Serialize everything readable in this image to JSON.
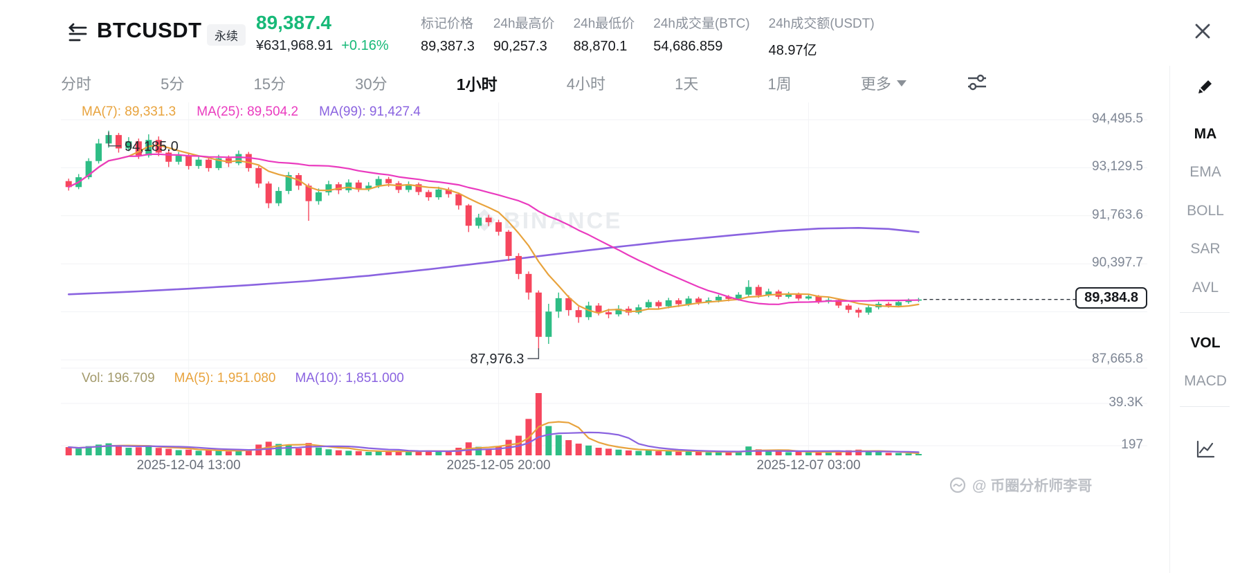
{
  "header": {
    "symbol": "BTCUSDT",
    "contract_badge": "永续",
    "last_price": "89,387.4",
    "fiat_price": "¥631,968.91",
    "change_percent": "+0.16%",
    "stats": [
      {
        "label": "标记价格",
        "value": "89,387.3"
      },
      {
        "label": "24h最高价",
        "value": "90,257.3"
      },
      {
        "label": "24h最低价",
        "value": "88,870.1"
      },
      {
        "label": "24h成交量(BTC)",
        "value": "54,686.859"
      },
      {
        "label": "24h成交额(USDT)",
        "value": "48.97亿"
      }
    ]
  },
  "timeframes": {
    "items": [
      "分时",
      "5分",
      "15分",
      "30分",
      "1小时",
      "4小时",
      "1天",
      "1周"
    ],
    "active": "1小时",
    "more_label": "更多"
  },
  "legend": {
    "ma7_label": "MA(7): 89,331.3",
    "ma25_label": "MA(25): 89,504.2",
    "ma99_label": "MA(99): 91,427.4"
  },
  "volume_legend": {
    "vol_label": "Vol: 196.709",
    "ma5_label": "MA(5): 1,951.080",
    "ma10_label": "MA(10): 1,851.000"
  },
  "annotations": {
    "high": "94,185.0",
    "low": "87,976.3"
  },
  "current_price_tag": "89,384.8",
  "price_axis": {
    "labels": [
      "94,495.5",
      "93,129.5",
      "91,763.6",
      "90,397.7",
      "87,665.8"
    ],
    "values": [
      94495.5,
      93129.5,
      91763.6,
      90397.7,
      87665.8
    ]
  },
  "volume_axis": {
    "labels": [
      "39.3K",
      "197"
    ]
  },
  "x_axis_labels": [
    {
      "text": "2025-12-04 13:00",
      "index": 12
    },
    {
      "text": "2025-12-05 20:00",
      "index": 43
    },
    {
      "text": "2025-12-07 03:00",
      "index": 74
    }
  ],
  "indicators_sidebar": {
    "main": [
      "MA",
      "EMA",
      "BOLL",
      "SAR",
      "AVL"
    ],
    "sub": [
      "VOL",
      "MACD"
    ],
    "active_main": "MA",
    "active_sub": "VOL"
  },
  "watermark": "BINANCE",
  "credit": "@ 币圈分析师李哥",
  "colors": {
    "up": "#2ebd85",
    "down": "#f6465d",
    "ma7": "#e8a33d",
    "ma25": "#ea3bbf",
    "ma99": "#8a63e0",
    "price_green": "#17b978",
    "vol_label": "#a39a6b",
    "grid": "#f1f2f4",
    "watermark_gray": "#e9ecef"
  },
  "chart_data": {
    "type": "candlestick",
    "interval": "1小时",
    "y_gridline_values": [
      94495.5,
      93129.5,
      91763.6,
      90397.7,
      89031.8,
      87665.8
    ],
    "candles": [
      [
        92750,
        92820,
        92480,
        92580,
        5200
      ],
      [
        92580,
        92950,
        92520,
        92860,
        4300
      ],
      [
        92860,
        93400,
        92800,
        93320,
        5800
      ],
      [
        93320,
        93950,
        93250,
        93820,
        6800
      ],
      [
        93820,
        94185,
        93700,
        94060,
        7600
      ],
      [
        94060,
        94120,
        93560,
        93680,
        6200
      ],
      [
        93680,
        94000,
        93600,
        93880,
        4800
      ],
      [
        93880,
        93960,
        93380,
        93480,
        5100
      ],
      [
        93480,
        94080,
        93420,
        93920,
        6400
      ],
      [
        93920,
        94020,
        93460,
        93560,
        4700
      ],
      [
        93560,
        93640,
        93150,
        93300,
        4100
      ],
      [
        93300,
        93580,
        93220,
        93470,
        3300
      ],
      [
        93470,
        93540,
        93080,
        93180,
        3600
      ],
      [
        93180,
        93460,
        93100,
        93360,
        2900
      ],
      [
        93360,
        93420,
        93020,
        93120,
        3100
      ],
      [
        93120,
        93500,
        93060,
        93400,
        2800
      ],
      [
        93400,
        93480,
        93150,
        93260,
        2500
      ],
      [
        93260,
        93620,
        93200,
        93520,
        3400
      ],
      [
        93520,
        93580,
        93020,
        93120,
        3900
      ],
      [
        93120,
        93180,
        92560,
        92680,
        6800
      ],
      [
        92680,
        92740,
        91980,
        92120,
        8600
      ],
      [
        92120,
        92580,
        92040,
        92470,
        7200
      ],
      [
        92470,
        93010,
        92380,
        92920,
        6600
      ],
      [
        92920,
        92980,
        92500,
        92620,
        4400
      ],
      [
        92620,
        92680,
        91620,
        92180,
        7800
      ],
      [
        92180,
        92540,
        92080,
        92430,
        4900
      ],
      [
        92430,
        92760,
        92340,
        92660,
        3800
      ],
      [
        92660,
        92720,
        92380,
        92490,
        3200
      ],
      [
        92490,
        92800,
        92420,
        92710,
        2900
      ],
      [
        92710,
        92780,
        92440,
        92540,
        2600
      ],
      [
        92540,
        92720,
        92460,
        92620,
        2200
      ],
      [
        92620,
        92890,
        92550,
        92810,
        2700
      ],
      [
        92810,
        92870,
        92590,
        92690,
        2300
      ],
      [
        92690,
        92750,
        92410,
        92500,
        2800
      ],
      [
        92500,
        92740,
        92430,
        92660,
        2400
      ],
      [
        92660,
        92710,
        92350,
        92440,
        2700
      ],
      [
        92440,
        92500,
        92190,
        92290,
        3100
      ],
      [
        92290,
        92590,
        92220,
        92510,
        2600
      ],
      [
        92510,
        92570,
        92280,
        92380,
        2500
      ],
      [
        92380,
        92430,
        91940,
        92060,
        4800
      ],
      [
        92060,
        92100,
        91300,
        91480,
        8200
      ],
      [
        91480,
        91820,
        91400,
        91710,
        5400
      ],
      [
        91710,
        91790,
        91470,
        91580,
        4100
      ],
      [
        91580,
        91650,
        91200,
        91310,
        5600
      ],
      [
        91310,
        91360,
        90480,
        90620,
        9800
      ],
      [
        90620,
        90700,
        89960,
        90110,
        12400
      ],
      [
        90110,
        90180,
        89380,
        89580,
        23000
      ],
      [
        89580,
        89640,
        87976.3,
        88320,
        39300
      ],
      [
        88320,
        89260,
        88120,
        89040,
        18500
      ],
      [
        89040,
        89580,
        88860,
        89420,
        12800
      ],
      [
        89420,
        89500,
        88920,
        89080,
        9600
      ],
      [
        89080,
        89180,
        88720,
        88880,
        7400
      ],
      [
        88880,
        89320,
        88800,
        89210,
        6200
      ],
      [
        89210,
        89280,
        88930,
        89020,
        4800
      ],
      [
        89020,
        89120,
        88850,
        88960,
        4200
      ],
      [
        88960,
        89220,
        88900,
        89120,
        3600
      ],
      [
        89120,
        89190,
        88930,
        89010,
        3100
      ],
      [
        89010,
        89240,
        88960,
        89160,
        2800
      ],
      [
        89160,
        89380,
        89090,
        89310,
        3300
      ],
      [
        89310,
        89360,
        89110,
        89190,
        2600
      ],
      [
        89190,
        89430,
        89130,
        89360,
        2900
      ],
      [
        89360,
        89420,
        89170,
        89250,
        2300
      ],
      [
        89250,
        89480,
        89190,
        89410,
        2700
      ],
      [
        89410,
        89460,
        89230,
        89300,
        2200
      ],
      [
        89300,
        89440,
        89250,
        89360,
        1900
      ],
      [
        89360,
        89520,
        89300,
        89460,
        2100
      ],
      [
        89460,
        89510,
        89330,
        89400,
        1800
      ],
      [
        89400,
        89590,
        89350,
        89520,
        2400
      ],
      [
        89520,
        89930,
        89470,
        89740,
        5600
      ],
      [
        89740,
        89800,
        89430,
        89500,
        3800
      ],
      [
        89500,
        89690,
        89450,
        89610,
        2600
      ],
      [
        89610,
        89660,
        89390,
        89460,
        2400
      ],
      [
        89460,
        89600,
        89410,
        89530,
        2000
      ],
      [
        89530,
        89580,
        89350,
        89410,
        2200
      ],
      [
        89410,
        89540,
        89370,
        89470,
        1900
      ],
      [
        89470,
        89510,
        89260,
        89320,
        2500
      ],
      [
        89320,
        89440,
        89270,
        89370,
        1700
      ],
      [
        89370,
        89400,
        89140,
        89210,
        2800
      ],
      [
        89210,
        89260,
        89000,
        89090,
        3200
      ],
      [
        89090,
        89150,
        88870.1,
        89010,
        3600
      ],
      [
        89010,
        89230,
        88950,
        89160,
        2400
      ],
      [
        89160,
        89320,
        89100,
        89260,
        2000
      ],
      [
        89260,
        89310,
        89150,
        89210,
        1600
      ],
      [
        89210,
        89370,
        89160,
        89310,
        1500
      ],
      [
        89310,
        89410,
        89260,
        89360,
        1200
      ],
      [
        89360,
        89430,
        89310,
        89384.8,
        197
      ]
    ],
    "ma99_points": [
      [
        0,
        89530
      ],
      [
        6,
        89600
      ],
      [
        12,
        89690
      ],
      [
        18,
        89790
      ],
      [
        24,
        89910
      ],
      [
        30,
        90060
      ],
      [
        36,
        90240
      ],
      [
        42,
        90440
      ],
      [
        48,
        90650
      ],
      [
        54,
        90850
      ],
      [
        60,
        91040
      ],
      [
        66,
        91200
      ],
      [
        71,
        91330
      ],
      [
        75,
        91400
      ],
      [
        79,
        91420
      ],
      [
        82,
        91390
      ],
      [
        85,
        91300
      ]
    ]
  }
}
